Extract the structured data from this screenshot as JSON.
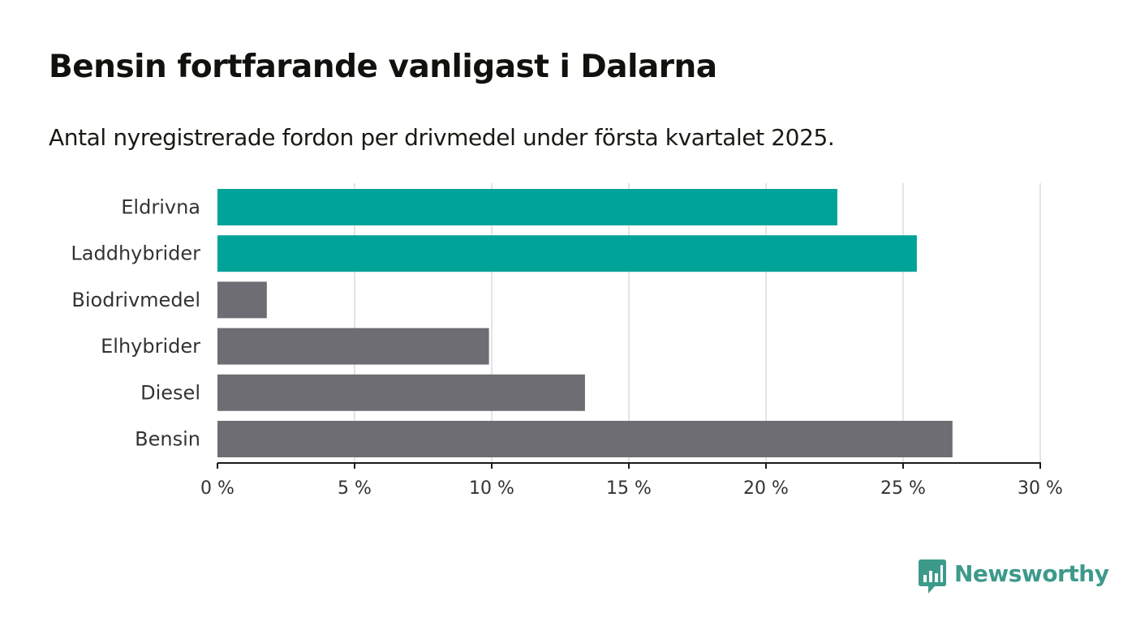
{
  "title": "Bensin fortfarande vanligast i Dalarna",
  "subtitle": "Antal nyregistrerade fordon per drivmedel under första kvartalet 2025.",
  "colors": {
    "highlight": "#00a398",
    "default": "#6e6d73",
    "grid": "#dcdcdc",
    "axis": "#1a1a1a",
    "brand": "#3d9a8b"
  },
  "brand": {
    "name": "Newsworthy",
    "icon": "newsworthy-logo-icon"
  },
  "chart_data": {
    "type": "bar",
    "orientation": "horizontal",
    "categories": [
      "Eldrivna",
      "Laddhybrider",
      "Biodrivmedel",
      "Elhybrider",
      "Diesel",
      "Bensin"
    ],
    "values": [
      22.6,
      25.5,
      1.8,
      9.9,
      13.4,
      26.8
    ],
    "highlighted": [
      true,
      true,
      false,
      false,
      false,
      false
    ],
    "xlim": [
      0,
      30
    ],
    "xticks": [
      0,
      5,
      10,
      15,
      20,
      25,
      30
    ],
    "xtick_labels": [
      "0 %",
      "5 %",
      "10 %",
      "15 %",
      "20 %",
      "25 %",
      "30 %"
    ],
    "grid": true,
    "xlabel": "",
    "ylabel": ""
  }
}
